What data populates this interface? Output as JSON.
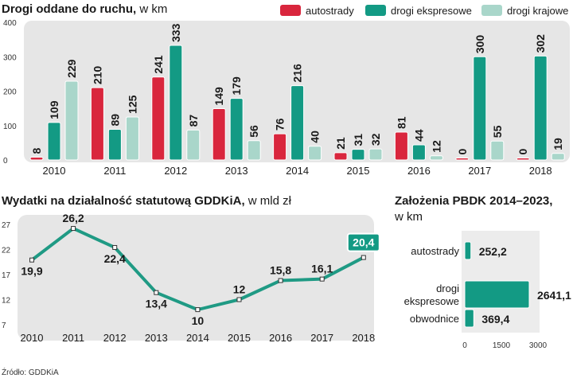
{
  "colors": {
    "autostrady": "#d9263d",
    "ekspresowe": "#139a84",
    "krajowe": "#a9d6ca",
    "panel_bg": "#e6e6e6",
    "line": "#1f9a84",
    "highlight": "#139a84"
  },
  "top": {
    "title": "Drogi oddane do ruchu,",
    "unit": "w km",
    "legend": [
      "autostrady",
      "drogi ekspresowe",
      "drogi krajowe"
    ]
  },
  "left": {
    "title": "Wydatki na działalność statutową GDDKiA,",
    "unit": "w mld zł"
  },
  "right": {
    "title_line1": "Założenia PBDK 2014–2023,",
    "title_line2": "w km"
  },
  "source": "Źródło: GDDKiA",
  "chart_data": [
    {
      "type": "bar",
      "title": "Drogi oddane do ruchu, w km",
      "categories": [
        "2010",
        "2011",
        "2012",
        "2013",
        "2014",
        "2015",
        "2016",
        "2017",
        "2018"
      ],
      "series": [
        {
          "name": "autostrady",
          "values": [
            8,
            210,
            241,
            149,
            76,
            21,
            81,
            0,
            0
          ]
        },
        {
          "name": "drogi ekspresowe",
          "values": [
            109,
            89,
            333,
            179,
            216,
            31,
            44,
            300,
            302
          ]
        },
        {
          "name": "drogi krajowe",
          "values": [
            229,
            125,
            87,
            56,
            40,
            32,
            12,
            55,
            19
          ]
        }
      ],
      "ylim": [
        0,
        400
      ],
      "yticks": [
        0,
        100,
        200,
        300,
        400
      ],
      "xlabel": "",
      "ylabel": ""
    },
    {
      "type": "line",
      "title": "Wydatki na działalność statutową GDDKiA, w mld zł",
      "x": [
        "2010",
        "2011",
        "2012",
        "2013",
        "2014",
        "2015",
        "2016",
        "2017",
        "2018"
      ],
      "values": [
        19.9,
        26.2,
        22.4,
        13.4,
        10,
        12,
        15.8,
        16.1,
        20.4
      ],
      "labels": [
        "19,9",
        "26,2",
        "22,4",
        "13,4",
        "10",
        "12",
        "15,8",
        "16,1",
        "20,4"
      ],
      "ylim": [
        7,
        27
      ],
      "yticks": [
        7,
        12,
        17,
        22,
        27
      ],
      "highlight_last": true
    },
    {
      "type": "bar",
      "orientation": "horizontal",
      "title": "Założenia PBDK 2014–2023, w km",
      "categories": [
        "autostrady",
        "drogi\nekspresowe",
        "obwodnice"
      ],
      "values": [
        252.2,
        2641.1,
        369.4
      ],
      "labels": [
        "252,2",
        "2641,1",
        "369,4"
      ],
      "xlim": [
        0,
        3000
      ],
      "xticks": [
        0,
        1500,
        3000
      ]
    }
  ]
}
